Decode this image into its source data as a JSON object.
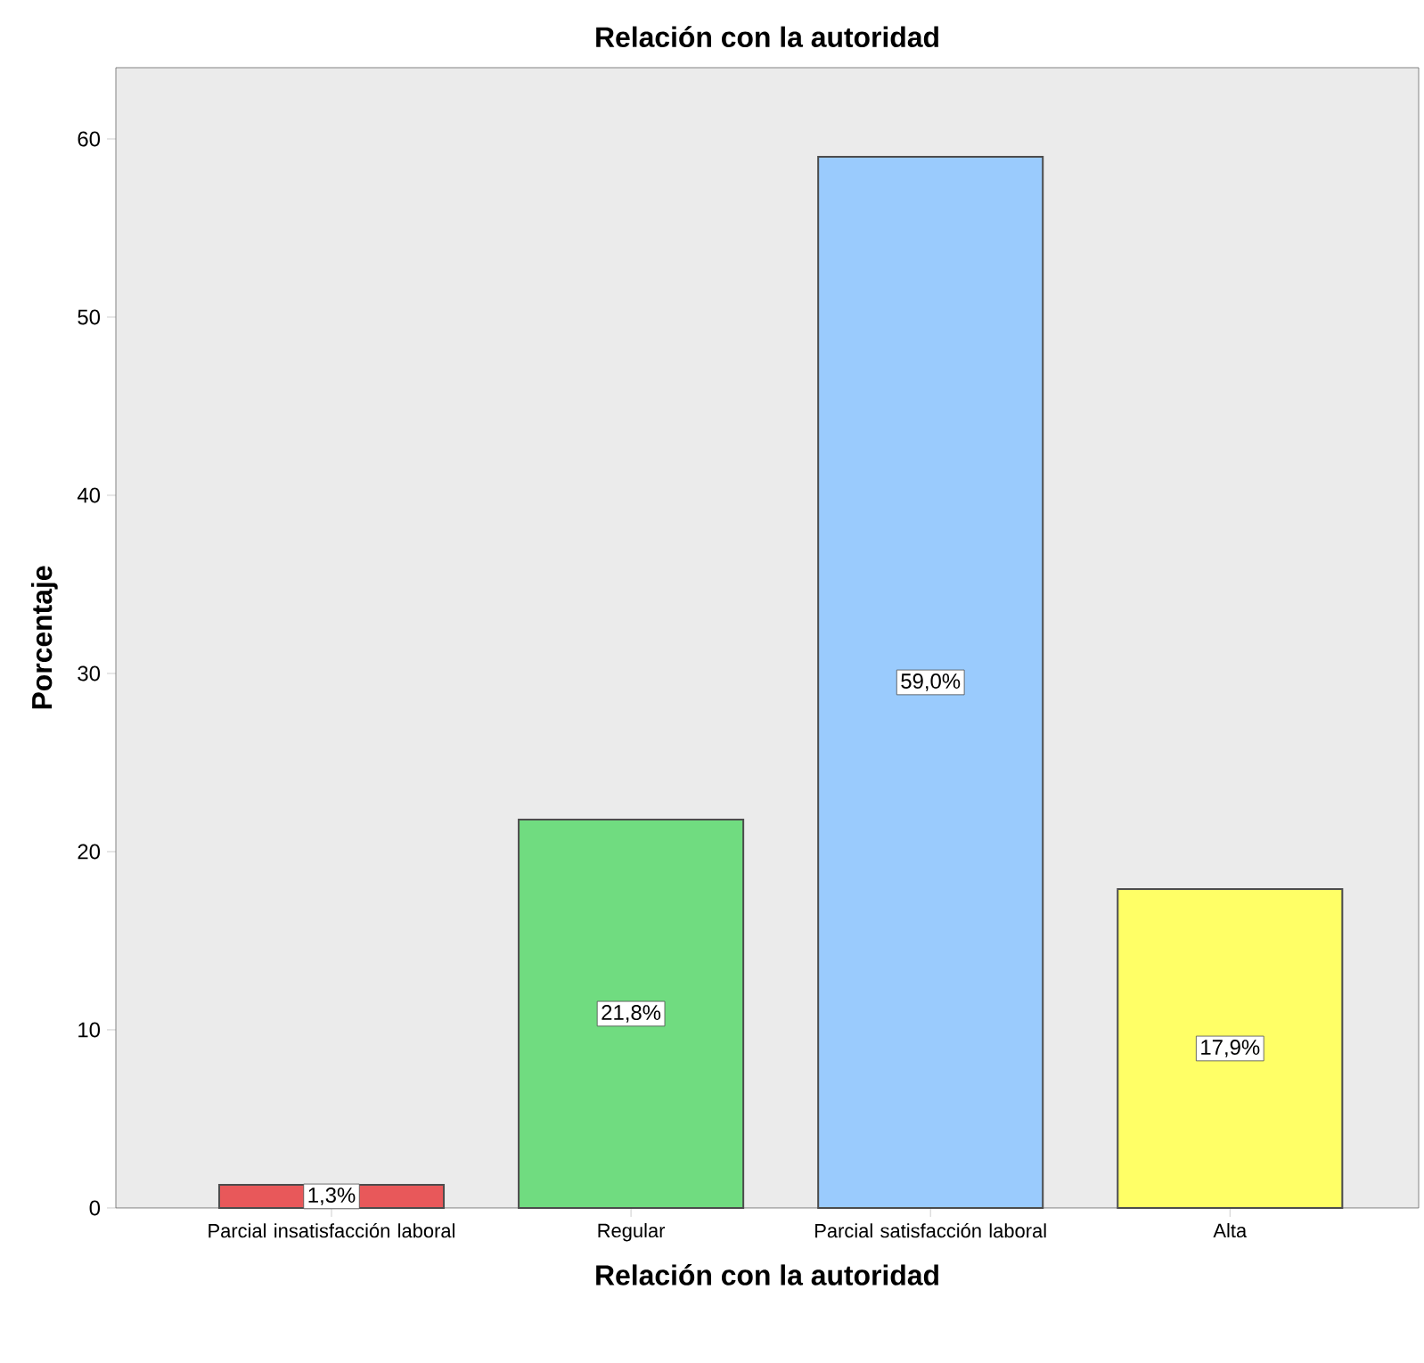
{
  "chart_data": {
    "type": "bar",
    "title": "Relación con la autoridad",
    "xlabel": "Relación con la autoridad",
    "ylabel": "Porcentaje",
    "categories": [
      "Parcial insatisfacción laboral",
      "Regular",
      "Parcial satisfacción laboral",
      "Alta"
    ],
    "values": [
      1.3,
      21.8,
      59.0,
      17.9
    ],
    "value_labels": [
      "1,3%",
      "21,8%",
      "59,0%",
      "17,9%"
    ],
    "colors": [
      "#e8585a",
      "#70dc80",
      "#9acbfd",
      "#ffff66"
    ],
    "ylim": [
      0,
      64
    ],
    "yticks": [
      0,
      10,
      20,
      30,
      40,
      50,
      60
    ],
    "grid": false
  }
}
